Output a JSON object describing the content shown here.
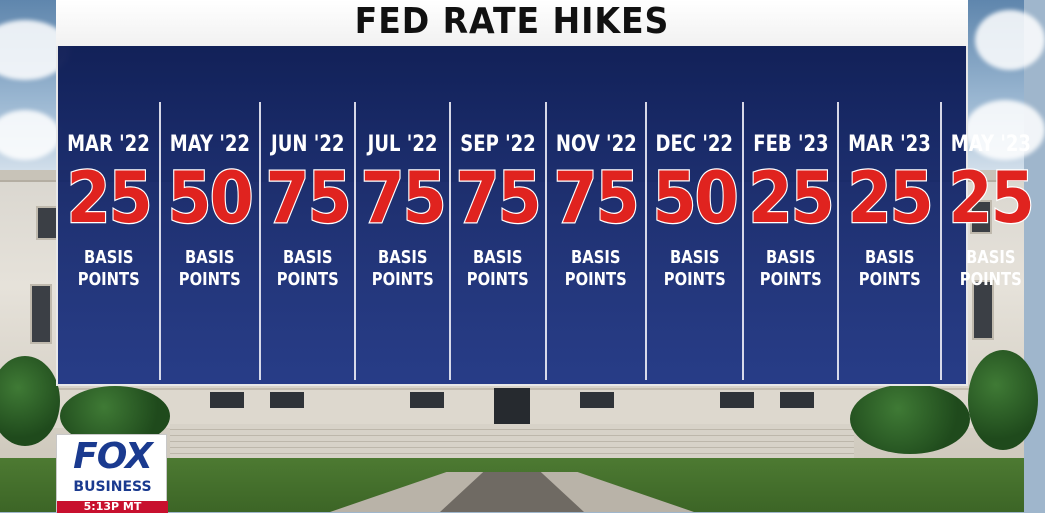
{
  "title": "FED RATE HIKES",
  "hikes": [
    {
      "date": "MAR '22",
      "value": "25",
      "unit_line1": "BASIS",
      "unit_line2": "POINTS"
    },
    {
      "date": "MAY '22",
      "value": "50",
      "unit_line1": "BASIS",
      "unit_line2": "POINTS"
    },
    {
      "date": "JUN '22",
      "value": "75",
      "unit_line1": "BASIS",
      "unit_line2": "POINTS"
    },
    {
      "date": "JUL '22",
      "value": "75",
      "unit_line1": "BASIS",
      "unit_line2": "POINTS"
    },
    {
      "date": "SEP '22",
      "value": "75",
      "unit_line1": "BASIS",
      "unit_line2": "POINTS"
    },
    {
      "date": "NOV '22",
      "value": "75",
      "unit_line1": "BASIS",
      "unit_line2": "POINTS"
    },
    {
      "date": "DEC '22",
      "value": "50",
      "unit_line1": "BASIS",
      "unit_line2": "POINTS"
    },
    {
      "date": "FEB '23",
      "value": "25",
      "unit_line1": "BASIS",
      "unit_line2": "POINTS"
    },
    {
      "date": "MAR '23",
      "value": "25",
      "unit_line1": "BASIS",
      "unit_line2": "POINTS"
    },
    {
      "date": "MAY '23",
      "value": "25",
      "unit_line1": "BASIS",
      "unit_line2": "POINTS"
    }
  ],
  "logo": {
    "brand": "FOX",
    "network": "BUSINESS",
    "time": "5:13P MT"
  },
  "colors": {
    "panel_navy": "#14266e",
    "value_red": "#e0231f",
    "text_white": "#ffffff",
    "logo_blue": "#1a3a8f",
    "time_red": "#c8102e"
  }
}
